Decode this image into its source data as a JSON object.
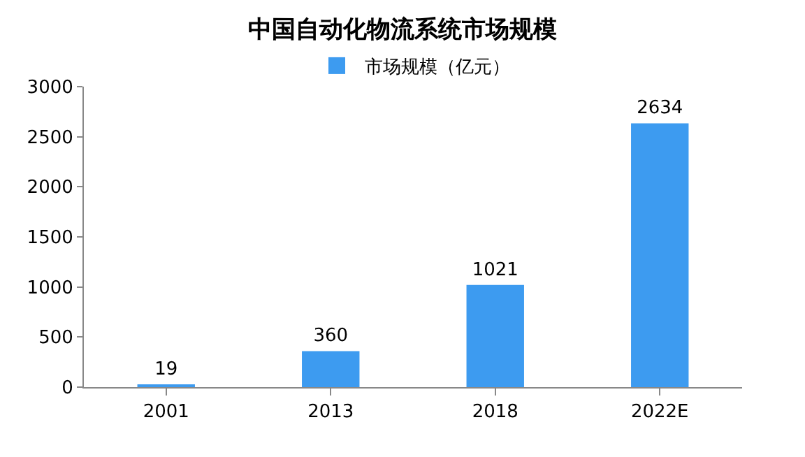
{
  "chart_data": {
    "type": "bar",
    "title": "中国自动化物流系统市场规模",
    "categories": [
      "2001",
      "2013",
      "2018",
      "2022E"
    ],
    "series": [
      {
        "name": "市场规模（亿元）",
        "color": "#3d9bf0",
        "values": [
          19,
          360,
          1021,
          2634
        ]
      }
    ],
    "ylim": [
      0,
      3000
    ],
    "yticks": [
      0,
      500,
      1000,
      1500,
      2000,
      2500,
      3000
    ],
    "data_labels": true,
    "grid": false,
    "legend": "top"
  }
}
